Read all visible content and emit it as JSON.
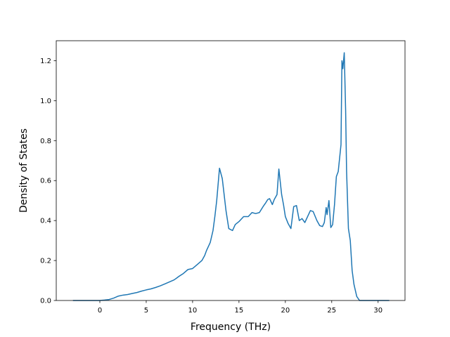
{
  "chart_data": {
    "type": "line",
    "title": "",
    "xlabel": "Frequency (THz)",
    "ylabel": "Density of States",
    "xlim": [
      -4.7,
      32.9
    ],
    "ylim": [
      0.0,
      1.3
    ],
    "xticks": [
      0,
      5,
      10,
      15,
      20,
      25,
      30
    ],
    "yticks": [
      0.0,
      0.2,
      0.4,
      0.6,
      0.8,
      1.0,
      1.2
    ],
    "grid": false,
    "legend": "none",
    "line_color": "#1f77b4",
    "series": [
      {
        "x": [
          -2.9,
          -1.0,
          0.0,
          0.5,
          1.0,
          1.5,
          2.0,
          2.5,
          3.0,
          3.5,
          4.0,
          4.5,
          5.0,
          5.5,
          6.0,
          6.5,
          7.0,
          7.5,
          8.0,
          8.3,
          8.5,
          9.0,
          9.5,
          10.0,
          10.5,
          11.0,
          11.3,
          11.5,
          11.9,
          12.2,
          12.4,
          12.6,
          12.9,
          13.2,
          13.6,
          13.9,
          14.3,
          14.6,
          15.0,
          15.5,
          16.0,
          16.4,
          16.8,
          17.2,
          17.6,
          17.9,
          18.1,
          18.3,
          18.6,
          18.8,
          19.1,
          19.3,
          19.6,
          19.8,
          20.0,
          20.3,
          20.6,
          20.9,
          21.2,
          21.5,
          21.8,
          22.1,
          22.4,
          22.7,
          23.0,
          23.4,
          23.7,
          24.0,
          24.2,
          24.4,
          24.5,
          24.7,
          24.9,
          25.1,
          25.3,
          25.5,
          25.7,
          26.0,
          26.1,
          26.2,
          26.35,
          26.5,
          26.6,
          26.8,
          27.0,
          27.2,
          27.4,
          27.5,
          27.7,
          28.0,
          28.2,
          28.5,
          29.0,
          30.0,
          31.2
        ],
        "y": [
          0.0,
          0.0,
          0.0,
          0.002,
          0.005,
          0.012,
          0.022,
          0.027,
          0.03,
          0.035,
          0.04,
          0.047,
          0.053,
          0.058,
          0.065,
          0.073,
          0.083,
          0.093,
          0.103,
          0.113,
          0.12,
          0.135,
          0.155,
          0.16,
          0.18,
          0.2,
          0.225,
          0.25,
          0.29,
          0.35,
          0.42,
          0.5,
          0.662,
          0.61,
          0.45,
          0.36,
          0.35,
          0.38,
          0.395,
          0.42,
          0.42,
          0.44,
          0.435,
          0.44,
          0.47,
          0.49,
          0.505,
          0.51,
          0.48,
          0.505,
          0.53,
          0.658,
          0.53,
          0.48,
          0.42,
          0.385,
          0.36,
          0.47,
          0.475,
          0.4,
          0.41,
          0.39,
          0.42,
          0.45,
          0.445,
          0.4,
          0.375,
          0.37,
          0.39,
          0.465,
          0.43,
          0.5,
          0.365,
          0.38,
          0.48,
          0.62,
          0.645,
          0.78,
          1.2,
          1.16,
          1.24,
          0.95,
          0.65,
          0.36,
          0.3,
          0.15,
          0.08,
          0.06,
          0.02,
          0.0,
          0.0,
          0.0,
          0.0,
          0.0,
          0.0
        ]
      }
    ]
  }
}
